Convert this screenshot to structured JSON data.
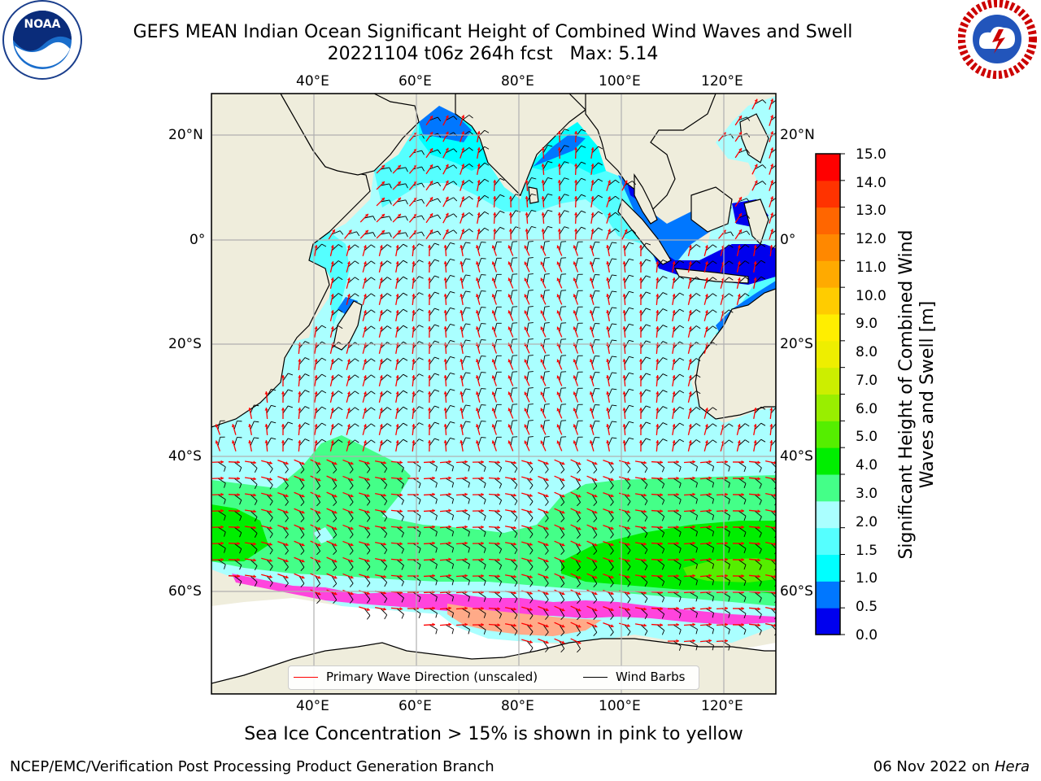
{
  "title": {
    "line1": "GEFS MEAN Indian Ocean Significant Height of Combined Wind Waves and Swell",
    "line2": "20221104 t06z 264h fcst   Max: 5.14"
  },
  "logos": {
    "noaa": {
      "name": "NOAA",
      "ring_text": "NATIONAL OCEANIC AND ATMOSPHERIC ADMINISTRATION · U.S. DEPARTMENT OF COMMERCE"
    },
    "nws": {
      "ring_text": "NATIONAL WEATHER SERVICE"
    }
  },
  "map": {
    "lon_range": [
      20,
      130
    ],
    "lat_range": [
      -85,
      25
    ],
    "grid": true,
    "gridlines_lon": [
      40,
      60,
      80,
      100,
      120
    ],
    "gridlines_lat": [
      20,
      0,
      -20,
      -40,
      -60
    ],
    "top_lon_labels": [
      "40°E",
      "60°E",
      "80°E",
      "100°E",
      "120°E"
    ],
    "bottom_lon_labels": [
      "40°E",
      "60°E",
      "80°E",
      "100°E",
      "120°E"
    ],
    "left_lat_labels": [
      "20°N",
      "0°",
      "20°S",
      "40°S",
      "60°S"
    ],
    "right_lat_labels": [
      "20°N",
      "0°",
      "20°S",
      "40°S",
      "60°S"
    ],
    "colors": {
      "land": "#efeddc",
      "ocean_base": "#aaffff",
      "grid": "#b0b0b0",
      "coast": "#000000",
      "wave_arrow": "#ff0000",
      "wind_barb": "#000000"
    }
  },
  "colorbar": {
    "title": "Significant Height of Combined Wind Waves and Swell [m]",
    "ticks": [
      "15.0",
      "14.0",
      "13.0",
      "12.0",
      "11.0",
      "10.0",
      "9.0",
      "8.0",
      "7.0",
      "6.0",
      "5.0",
      "4.0",
      "3.0",
      "2.0",
      "1.5",
      "1.0",
      "0.5",
      "0.0"
    ],
    "bins_bottom_to_top": [
      "#0000ee",
      "#0077ff",
      "#00ffff",
      "#55ffff",
      "#aaffff",
      "#44ff88",
      "#00ee00",
      "#55ee00",
      "#99ee00",
      "#ccee00",
      "#eeee00",
      "#ffee00",
      "#ffcc00",
      "#ffaa00",
      "#ff8800",
      "#ff6600",
      "#ff3300",
      "#ff0000"
    ]
  },
  "legend": {
    "primary_wave_direction": "Primary Wave Direction (unscaled)",
    "wind_barbs": "Wind Barbs"
  },
  "caption": "Sea Ice Concentration > 15% is shown in pink to yellow",
  "footer": {
    "left": "NCEP/EMC/Verification Post Processing Product Generation Branch",
    "date": "06 Nov 2022 on",
    "machine": "Hera"
  }
}
